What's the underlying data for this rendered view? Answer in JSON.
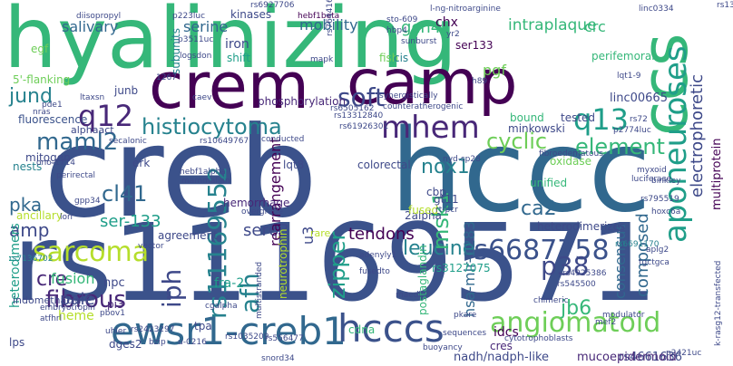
{
  "cloud": {
    "words": [
      {
        "text": "hyalinizing",
        "color": "#35b779"
      },
      {
        "text": "creb",
        "color": "#3b528b"
      },
      {
        "text": "rs11169571",
        "color": "#3b528b"
      },
      {
        "text": "hccc",
        "color": "#31688e"
      },
      {
        "text": "crem",
        "color": "#440154"
      },
      {
        "text": "camp",
        "color": "#440154"
      },
      {
        "text": "ccs",
        "color": "#35b779"
      },
      {
        "text": "aponeuroses",
        "color": "#1f9e89"
      },
      {
        "text": "ewsr1-creb1",
        "color": "#31688e"
      },
      {
        "text": "hcccs",
        "color": "#3b528b"
      },
      {
        "text": "rs6687758",
        "color": "#3b528b"
      },
      {
        "text": "angiomatoid",
        "color": "#6ece58"
      },
      {
        "text": "mhem",
        "color": "#482878"
      },
      {
        "text": "q12",
        "color": "#482878"
      },
      {
        "text": "q13",
        "color": "#1f9e89"
      },
      {
        "text": "soft",
        "color": "#3e4989"
      },
      {
        "text": "histiocytoma",
        "color": "#26828e"
      },
      {
        "text": "maml2",
        "color": "#31688e"
      },
      {
        "text": "sarcoma",
        "color": "#b5de2b"
      },
      {
        "text": "rs11169552",
        "color": "#26828e"
      },
      {
        "text": "p38",
        "color": "#3e4989"
      },
      {
        "text": "fibrous",
        "color": "#482878"
      },
      {
        "text": "cre",
        "color": "#482878"
      },
      {
        "text": "iph",
        "color": "#3e4989"
      },
      {
        "text": "afh",
        "color": "#26828e"
      },
      {
        "text": "element",
        "color": "#35b779"
      },
      {
        "text": "cyclic",
        "color": "#6ece58"
      },
      {
        "text": "nox1",
        "color": "#26828e"
      },
      {
        "text": "leucine",
        "color": "#26828e"
      },
      {
        "text": "msk1",
        "color": "#35b779"
      },
      {
        "text": "zipper",
        "color": "#1f9e89"
      },
      {
        "text": "ca2",
        "color": "#31688e"
      },
      {
        "text": "electrophoretic",
        "color": "#3e4989"
      },
      {
        "text": "multiprotein",
        "color": "#440154"
      },
      {
        "text": "jund",
        "color": "#26828e"
      },
      {
        "text": "pka",
        "color": "#31688e"
      },
      {
        "text": "cl41",
        "color": "#31688e"
      },
      {
        "text": "amp",
        "color": "#3e4989"
      },
      {
        "text": "ser-133",
        "color": "#1f9e89"
      },
      {
        "text": "ser63",
        "color": "#3e4989"
      },
      {
        "text": "rearrangement",
        "color": "#440154"
      },
      {
        "text": "u3",
        "color": "#3e4989"
      },
      {
        "text": "tendons",
        "color": "#440154"
      },
      {
        "text": "fusion",
        "color": "#35b779"
      },
      {
        "text": "pale",
        "color": "#3e4989"
      },
      {
        "text": "heme",
        "color": "#b5de2b"
      },
      {
        "text": "jb6",
        "color": "#35b779"
      },
      {
        "text": "consensus",
        "color": "#31688e"
      },
      {
        "text": "composed",
        "color": "#31688e"
      },
      {
        "text": "rs4661636",
        "color": "#3e4989"
      },
      {
        "text": "mucoepidermoid",
        "color": "#482878"
      },
      {
        "text": "cres",
        "color": "#482878"
      },
      {
        "text": "nadh/nadph-like",
        "color": "#3e4989"
      },
      {
        "text": "hsa-mir-1283",
        "color": "#31688e"
      },
      {
        "text": "idcs",
        "color": "#440154"
      },
      {
        "text": "fra-2",
        "color": "#1f9e89"
      },
      {
        "text": "serine",
        "color": "#31688e"
      },
      {
        "text": "gcn4",
        "color": "#35b779"
      },
      {
        "text": "mobility",
        "color": "#31688e"
      },
      {
        "text": "chx",
        "color": "#440154"
      },
      {
        "text": "intraplaque",
        "color": "#35b779"
      },
      {
        "text": "crc",
        "color": "#35b779"
      },
      {
        "text": "salivary",
        "color": "#31688e"
      },
      {
        "text": "iron",
        "color": "#3e4989"
      },
      {
        "text": "shift",
        "color": "#1f9e89"
      },
      {
        "text": "pgf",
        "color": "#6ece58"
      },
      {
        "text": "ser133",
        "color": "#440154"
      },
      {
        "text": "fish",
        "color": "#6ece58"
      },
      {
        "text": "cis",
        "color": "#26828e"
      },
      {
        "text": "phosphorylation",
        "color": "#482878"
      },
      {
        "text": "linc00665",
        "color": "#3e4989"
      },
      {
        "text": "fluorescence",
        "color": "#3b528b"
      },
      {
        "text": "mitogen",
        "color": "#3e4989"
      },
      {
        "text": "heterodimers",
        "color": "#1f9e89"
      },
      {
        "text": "heterodimerizes",
        "color": "#3e4989"
      },
      {
        "text": "2alpha",
        "color": "#3e4989"
      },
      {
        "text": "hemorrhage",
        "color": "#482878"
      },
      {
        "text": "agreement",
        "color": "#3e4989"
      },
      {
        "text": "rs3127075",
        "color": "#1f9e89"
      },
      {
        "text": "unified",
        "color": "#35b779"
      },
      {
        "text": "gt11",
        "color": "#3e4989"
      },
      {
        "text": "npc",
        "color": "#3e4989"
      },
      {
        "text": "pi3",
        "color": "#482878"
      },
      {
        "text": "dges2",
        "color": "#3e4989"
      },
      {
        "text": "tpa",
        "color": "#3e4989"
      },
      {
        "text": "cdna",
        "color": "#35b779"
      },
      {
        "text": "lps",
        "color": "#3e4989"
      },
      {
        "text": "cbp",
        "color": "#3e4989"
      },
      {
        "text": "lqt8",
        "color": "#3e4989"
      },
      {
        "text": "junb",
        "color": "#3e4989"
      },
      {
        "text": "minkowski",
        "color": "#3e4989"
      },
      {
        "text": "tested",
        "color": "#3e4989"
      },
      {
        "text": "erk",
        "color": "#3e4989"
      },
      {
        "text": "colorectal",
        "color": "#3e4989"
      },
      {
        "text": "fused",
        "color": "#b5de2b"
      },
      {
        "text": "perifemoral",
        "color": "#35b779"
      },
      {
        "text": "5'-flanking",
        "color": "#6ece58"
      },
      {
        "text": "nests",
        "color": "#26828e"
      },
      {
        "text": "ancillary",
        "color": "#b5de2b"
      },
      {
        "text": "oxidase",
        "color": "#6ece58"
      },
      {
        "text": "kinases",
        "color": "#3e4989"
      },
      {
        "text": "subunits",
        "color": "#26828e"
      },
      {
        "text": "egf",
        "color": "#6ece58"
      },
      {
        "text": "bound",
        "color": "#35b779"
      },
      {
        "text": "alphaact",
        "color": "#3e4989"
      },
      {
        "text": "indomethacin",
        "color": "#3e4989"
      },
      {
        "text": "rare",
        "color": "#b5de2b"
      },
      {
        "text": "rs2423297",
        "color": "#3e4989"
      },
      {
        "text": "rs556477",
        "color": "#3e4989"
      },
      {
        "text": "rs1035209",
        "color": "#3e4989"
      },
      {
        "text": "snord34",
        "color": "#3e4989"
      },
      {
        "text": "cytotrophoblasts",
        "color": "#3e4989"
      },
      {
        "text": "sequences",
        "color": "#3e4989"
      },
      {
        "text": "neurotrophin",
        "color": "#b5de2b"
      },
      {
        "text": "postaglandin",
        "color": "#35b779"
      },
      {
        "text": "rs6691170",
        "color": "#26828e"
      },
      {
        "text": "rs7136702",
        "color": "#26828e"
      },
      {
        "text": "hebf1beta",
        "color": "#440154"
      },
      {
        "text": "sto-609",
        "color": "#3e4989"
      },
      {
        "text": "l-ng-nitroarginine",
        "color": "#3e4989"
      },
      {
        "text": "diisopropyl",
        "color": "#3e4989"
      },
      {
        "text": "p223luc",
        "color": "#3e4989"
      },
      {
        "text": "rs6927706",
        "color": "#3e4989"
      },
      {
        "text": "linc0334",
        "color": "#3e4989"
      },
      {
        "text": "hbp4",
        "color": "#3e4989"
      },
      {
        "text": "sunburst",
        "color": "#3e4989"
      },
      {
        "text": "counteratherogenic",
        "color": "#3e4989"
      },
      {
        "text": "synergistically",
        "color": "#3e4989"
      },
      {
        "text": "mapk",
        "color": "#3e4989"
      },
      {
        "text": "logsdon",
        "color": "#3e4989"
      },
      {
        "text": "p3511uc",
        "color": "#3e4989"
      },
      {
        "text": "rs13312840",
        "color": "#3e4989"
      },
      {
        "text": "rs61926301",
        "color": "#3e4989"
      },
      {
        "text": "rs6505162",
        "color": "#3e4989"
      },
      {
        "text": "caev",
        "color": "#3e4989"
      },
      {
        "text": "secalonic",
        "color": "#3e4989"
      },
      {
        "text": "rs10649767",
        "color": "#3e4989"
      },
      {
        "text": "hebf1alpha",
        "color": "#3e4989"
      },
      {
        "text": "mammalian",
        "color": "#3e4989"
      },
      {
        "text": "overgrade",
        "color": "#3e4989"
      },
      {
        "text": "fibroedematous",
        "color": "#3e4989"
      },
      {
        "text": "luciferase",
        "color": "#3e4989"
      },
      {
        "text": "rs795519",
        "color": "#3e4989"
      },
      {
        "text": "rs545500",
        "color": "#3e4989"
      },
      {
        "text": "rs4925386",
        "color": "#3e4989"
      },
      {
        "text": "maedi",
        "color": "#3e4989"
      },
      {
        "text": "chimeric",
        "color": "#3e4989"
      },
      {
        "text": "modulator",
        "color": "#3e4989"
      },
      {
        "text": "pkare",
        "color": "#3e4989"
      },
      {
        "text": "buoyancy",
        "color": "#3e4989"
      },
      {
        "text": "p2421uc",
        "color": "#3e4989"
      },
      {
        "text": "embryotropin",
        "color": "#3e4989"
      },
      {
        "text": "pbov1",
        "color": "#3e4989"
      },
      {
        "text": "multistranded",
        "color": "#3e4989"
      },
      {
        "text": "adenyly1",
        "color": "#3e4989"
      },
      {
        "text": "fusedto",
        "color": "#3e4989"
      },
      {
        "text": "cgalpha",
        "color": "#3e4989"
      },
      {
        "text": "u-0216",
        "color": "#3e4989"
      },
      {
        "text": "vector",
        "color": "#3e4989"
      },
      {
        "text": "bzip",
        "color": "#3e4989"
      },
      {
        "text": "atfhrl",
        "color": "#3e4989"
      },
      {
        "text": "uhler",
        "color": "#3e4989"
      },
      {
        "text": "myxoid",
        "color": "#3e4989"
      },
      {
        "text": "binkley",
        "color": "#3e4989"
      },
      {
        "text": "hoxc6a",
        "color": "#3e4989"
      },
      {
        "text": "rt-pcr",
        "color": "#3e4989"
      },
      {
        "text": "nyd-sp28",
        "color": "#3e4989"
      },
      {
        "text": "lqt1-9",
        "color": "#3e4989"
      },
      {
        "text": "rs72",
        "color": "#3e4989"
      },
      {
        "text": "p2774luc",
        "color": "#3e4989"
      },
      {
        "text": "1267",
        "color": "#3e4989"
      },
      {
        "text": "gpp34",
        "color": "#3e4989"
      },
      {
        "text": "ono-1714",
        "color": "#3e4989"
      },
      {
        "text": "perirectal",
        "color": "#3e4989"
      },
      {
        "text": "pde1",
        "color": "#3e4989"
      },
      {
        "text": "nras",
        "color": "#3e4989"
      },
      {
        "text": "ltaxsn",
        "color": "#3e4989"
      },
      {
        "text": "lorr",
        "color": "#3e4989"
      },
      {
        "text": "conducted",
        "color": "#3e4989"
      },
      {
        "text": "h89",
        "color": "#3e4989"
      },
      {
        "text": "yr2",
        "color": "#3e4989"
      },
      {
        "text": "k-rasg12-transfected",
        "color": "#3e4989"
      },
      {
        "text": "aplg2",
        "color": "#3e4989"
      },
      {
        "text": "tgctgca",
        "color": "#3e4989"
      },
      {
        "text": "mef2",
        "color": "#3e4989"
      },
      {
        "text": "rs764416",
        "color": "#3e4989"
      },
      {
        "text": "rs1327",
        "color": "#3e4989"
      }
    ]
  }
}
